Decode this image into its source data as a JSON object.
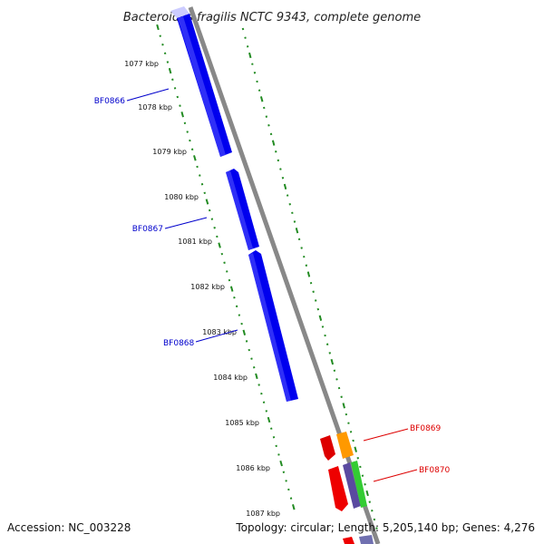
{
  "title": "Bacteroides fragilis NCTC 9343, complete genome",
  "footer": {
    "accession": "Accession: NC_003228",
    "summary": "Topology: circular; Length: 5,205,140 bp; Genes: 4,276"
  },
  "axis": {
    "ticks": [
      "1077 kbp",
      "1078 kbp",
      "1079 kbp",
      "1080 kbp",
      "1081 kbp",
      "1082 kbp",
      "1083 kbp",
      "1084 kbp",
      "1085 kbp",
      "1086 kbp",
      "1087 kbp"
    ]
  },
  "genes": [
    {
      "id": "BF0866",
      "color": "#0000ee"
    },
    {
      "id": "BF0867",
      "color": "#0000ee"
    },
    {
      "id": "BF0868",
      "color": "#0000ee"
    },
    {
      "id": "BF0869",
      "color": "#dd0000"
    },
    {
      "id": "BF0870",
      "color": "#dd0000"
    }
  ],
  "colors": {
    "backbone": "#888888",
    "tick_dots": "#228b22",
    "label_blue": "#0000cc",
    "label_red": "#dd0000",
    "orange": "#ff9900",
    "purple": "#5a4aa0",
    "green": "#33cc33"
  }
}
